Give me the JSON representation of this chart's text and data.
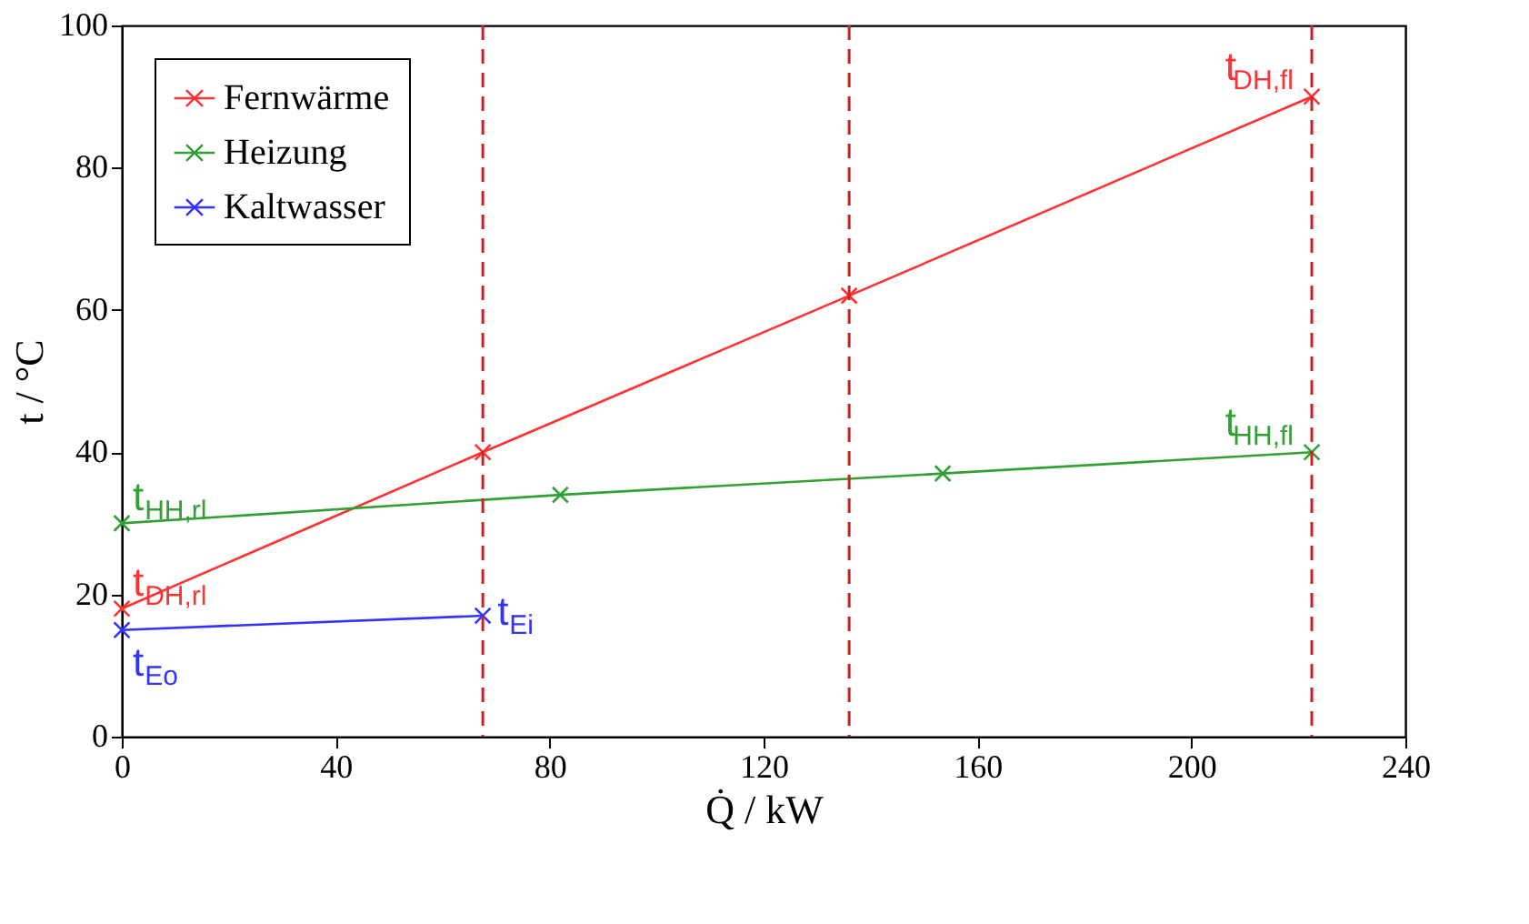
{
  "chart_data": {
    "type": "line",
    "xlabel": "Q̇ / kW",
    "ylabel": "t / °C",
    "xlim": [
      0,
      240
    ],
    "xticks": [
      0,
      40,
      80,
      120,
      160,
      200,
      240
    ],
    "ylim": [
      0,
      100
    ],
    "yticks": [
      0,
      20,
      40,
      60,
      80,
      100
    ],
    "grid": false,
    "legend": "top left",
    "marker": "cross",
    "line_style": "solid",
    "series": [
      {
        "name": "Fernwärme",
        "color": "#ff3333",
        "x": [
          0,
          67.5,
          136,
          222.5
        ],
        "values": [
          18,
          40,
          62,
          90
        ]
      },
      {
        "name": "Heizung",
        "color": "#33a033",
        "x": [
          0,
          82,
          153.5,
          222.5
        ],
        "values": [
          30,
          34,
          37,
          40
        ]
      },
      {
        "name": "Kaltwasser",
        "color": "#3333ff",
        "x": [
          0,
          67.5
        ],
        "values": [
          15,
          17
        ]
      }
    ],
    "ref_lines": [
      {
        "axis": "x",
        "value": 67.5,
        "color": "#cc2222",
        "line_style": "dashed"
      },
      {
        "axis": "x",
        "value": 136,
        "color": "#cc2222",
        "line_style": "dashed"
      },
      {
        "axis": "x",
        "value": 222.5,
        "color": "#cc2222",
        "line_style": "dashed"
      }
    ],
    "annotations": [
      {
        "text": "t$_{DH,fl}$",
        "x": 222.5,
        "y": 90
      },
      {
        "text": "t$_{HH,fl}$",
        "x": 222.5,
        "y": 40
      },
      {
        "text": "t$_{HH,rl}$",
        "x": 0,
        "y": 30
      },
      {
        "text": "t$_{DH,rl}$",
        "x": 0,
        "y": 18
      },
      {
        "text": "t$_{Eo}$",
        "x": 0,
        "y": 15
      },
      {
        "text": "t$_{Ei}$",
        "x": 67.5,
        "y": 17
      }
    ]
  }
}
